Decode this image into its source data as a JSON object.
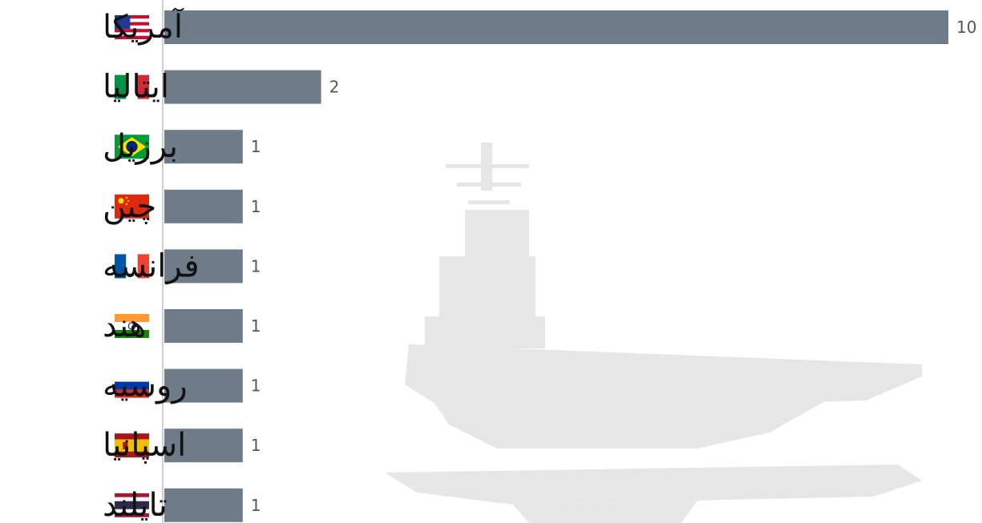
{
  "colors": {
    "bar": "#6e7b89",
    "background": "#ffffff",
    "watermark": "#e6e6e6",
    "axis": "#d0d0d0",
    "label": "#111111",
    "value": "#555555"
  },
  "chart_data": {
    "type": "bar",
    "orientation": "horizontal",
    "categories": [
      "آمریکا",
      "ایتالیا",
      "برزیل",
      "چین",
      "فرانسه",
      "هند",
      "روسیه",
      "اسپانیا",
      "تایلند"
    ],
    "flags": [
      "us-flag-icon",
      "it-flag-icon",
      "br-flag-icon",
      "cn-flag-icon",
      "fr-flag-icon",
      "in-flag-icon",
      "ru-flag-icon",
      "es-flag-icon",
      "th-flag-icon"
    ],
    "values": [
      10,
      2,
      1,
      1,
      1,
      1,
      1,
      1,
      1
    ],
    "value_labels": [
      "10",
      "2",
      "1",
      "1",
      "1",
      "1",
      "1",
      "1",
      "1"
    ],
    "xlim": [
      0,
      10
    ],
    "grid": false,
    "background_image": "aircraft-carrier-silhouette"
  }
}
